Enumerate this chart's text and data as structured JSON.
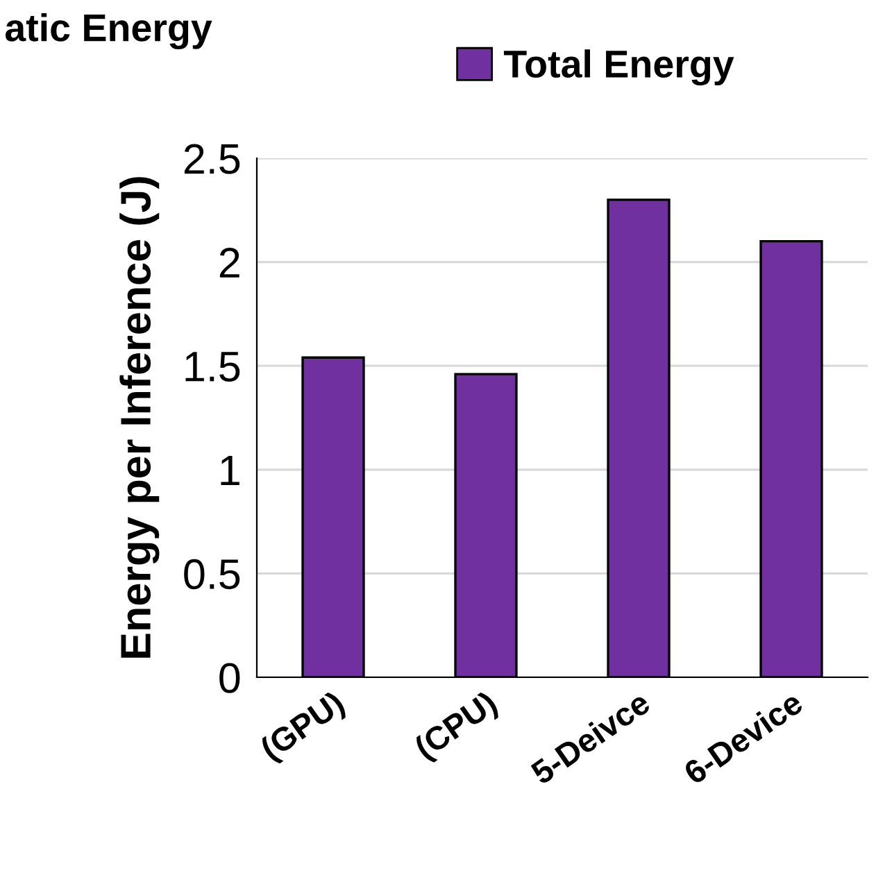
{
  "chart_data": {
    "type": "bar",
    "ylabel": "Energy per Inference (J)",
    "categories": [
      "(GPU)",
      "(CPU)",
      "5-Deivce",
      "6-Device"
    ],
    "series": [
      {
        "name": "Total Energy",
        "color": "#7030a0",
        "values": [
          1.54,
          1.46,
          2.3,
          2.1
        ]
      }
    ],
    "ylim": [
      0,
      2.5
    ],
    "yticks": [
      0,
      0.5,
      1,
      1.5,
      2,
      2.5
    ],
    "grid": "y",
    "legend": "top",
    "annotations": [
      "atic Energy"
    ]
  }
}
